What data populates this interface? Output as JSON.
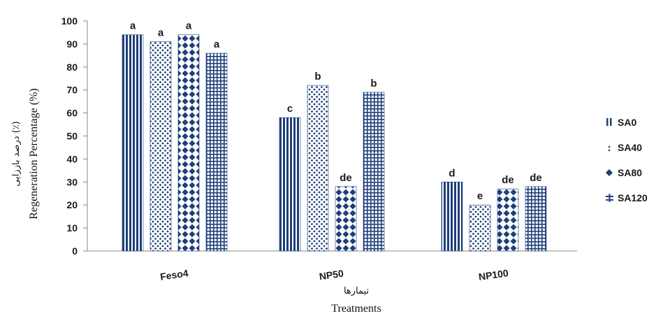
{
  "chart_data": {
    "type": "bar",
    "categories": [
      "Feso4",
      "NP50",
      "NP100"
    ],
    "series": [
      {
        "name": "SA0",
        "values": [
          94,
          58,
          30
        ],
        "letters": [
          "a",
          "c",
          "d"
        ]
      },
      {
        "name": "SA40",
        "values": [
          91,
          72,
          20
        ],
        "letters": [
          "a",
          "b",
          "e"
        ]
      },
      {
        "name": "SA80",
        "values": [
          94,
          28,
          27
        ],
        "letters": [
          "a",
          "de",
          "de"
        ]
      },
      {
        "name": "SA120",
        "values": [
          86,
          69,
          28
        ],
        "letters": [
          "a",
          "b",
          "de"
        ]
      }
    ],
    "ylim": [
      0,
      100
    ],
    "yticks": [
      0,
      10,
      20,
      30,
      40,
      50,
      60,
      70,
      80,
      90,
      100
    ],
    "xlabel": "Treatments",
    "xlabel_fa": "تیمارها",
    "ylabel": "Regeneration Percentage (%)",
    "ylabel_fa": "درصد باززایی (٪)",
    "legend_position": "right",
    "grid": false,
    "bar_color": "#1f3f7a"
  }
}
